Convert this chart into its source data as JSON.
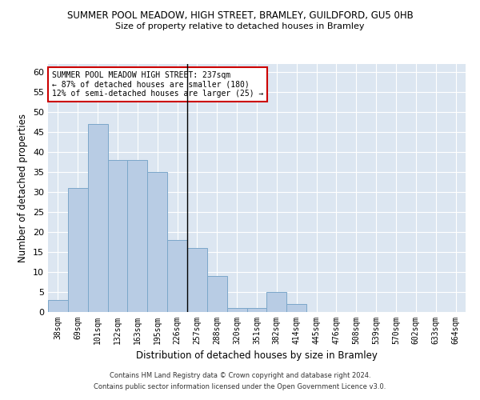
{
  "title": "SUMMER POOL MEADOW, HIGH STREET, BRAMLEY, GUILDFORD, GU5 0HB",
  "subtitle": "Size of property relative to detached houses in Bramley",
  "xlabel": "Distribution of detached houses by size in Bramley",
  "ylabel": "Number of detached properties",
  "categories": [
    "38sqm",
    "69sqm",
    "101sqm",
    "132sqm",
    "163sqm",
    "195sqm",
    "226sqm",
    "257sqm",
    "288sqm",
    "320sqm",
    "351sqm",
    "382sqm",
    "414sqm",
    "445sqm",
    "476sqm",
    "508sqm",
    "539sqm",
    "570sqm",
    "602sqm",
    "633sqm",
    "664sqm"
  ],
  "values": [
    3,
    31,
    47,
    38,
    38,
    35,
    18,
    16,
    9,
    1,
    1,
    5,
    2,
    0,
    0,
    0,
    0,
    0,
    0,
    0,
    0
  ],
  "bar_color": "#b8cce4",
  "bar_edge_color": "#7ba7c9",
  "annotation_text_line1": "SUMMER POOL MEADOW HIGH STREET: 237sqm",
  "annotation_text_line2": "← 87% of detached houses are smaller (180)",
  "annotation_text_line3": "12% of semi-detached houses are larger (25) →",
  "annotation_box_color": "#ffffff",
  "annotation_border_color": "#cc0000",
  "vline_x_index": 6,
  "ylim": [
    0,
    62
  ],
  "yticks": [
    0,
    5,
    10,
    15,
    20,
    25,
    30,
    35,
    40,
    45,
    50,
    55,
    60
  ],
  "background_color": "#dce6f1",
  "grid_color": "#ffffff",
  "footer_line1": "Contains HM Land Registry data © Crown copyright and database right 2024.",
  "footer_line2": "Contains public sector information licensed under the Open Government Licence v3.0."
}
